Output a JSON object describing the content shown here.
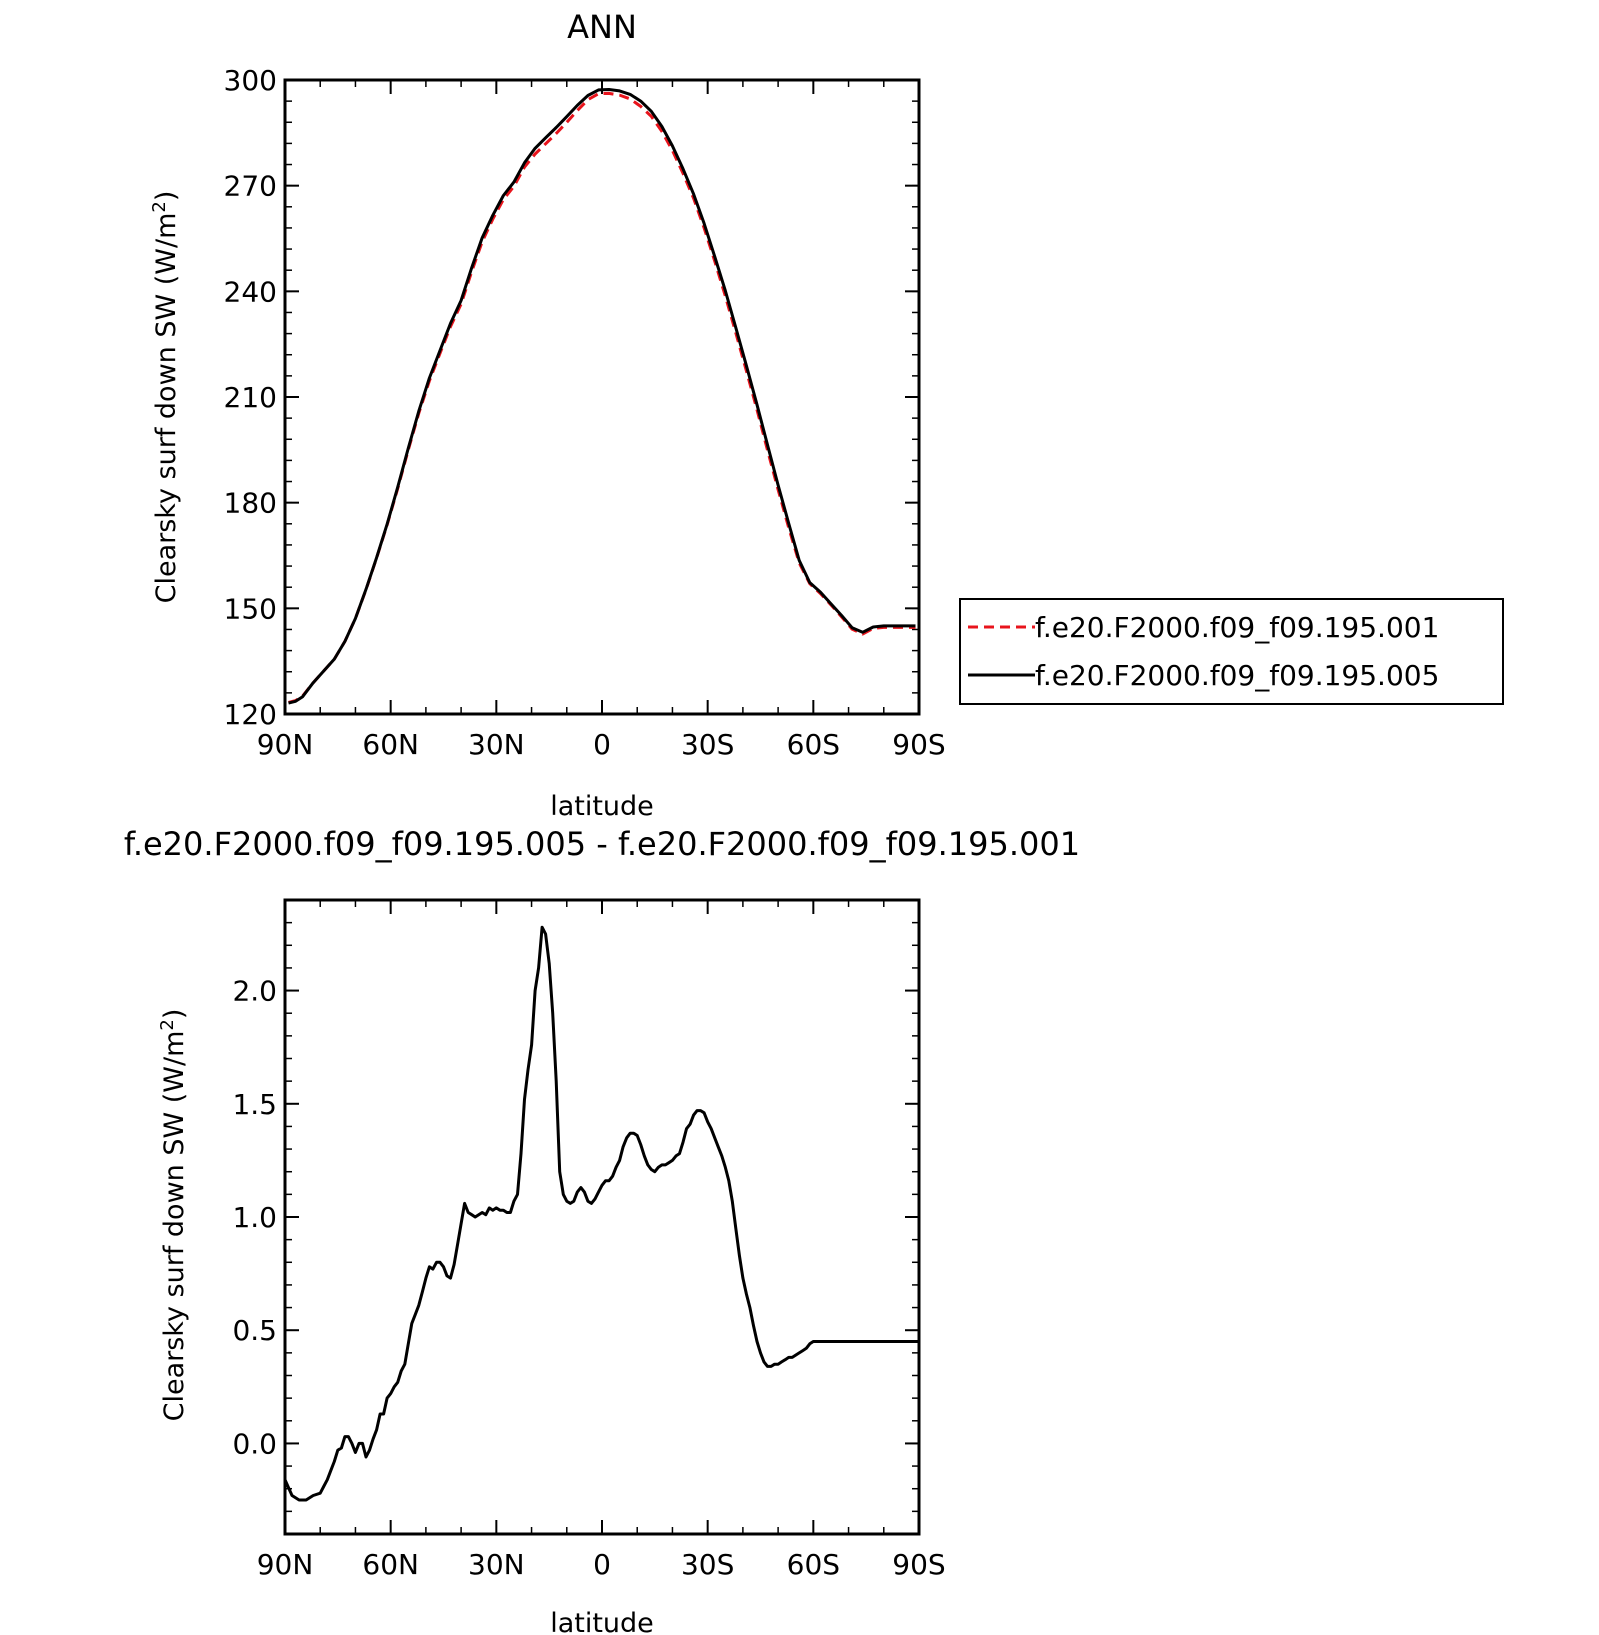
{
  "chart_data": [
    {
      "type": "line",
      "title": "ANN",
      "xlabel": "latitude",
      "ylabel": "Clearsky surf down SW (W/m²)",
      "ylabel_main": "Clearsky surf down SW (W/m",
      "ylabel_sup": "2",
      "ylabel_tail": ")",
      "xlim": [
        90,
        -90
      ],
      "ylim": [
        120,
        300
      ],
      "x_tick_values": [
        90,
        60,
        30,
        0,
        -30,
        -60,
        -90
      ],
      "x_tick_labels": [
        "90N",
        "60N",
        "30N",
        "0",
        "30S",
        "60S",
        "90S"
      ],
      "y_tick_values": [
        120,
        150,
        180,
        210,
        240,
        270,
        300
      ],
      "y_tick_labels": [
        "120",
        "150",
        "180",
        "210",
        "240",
        "270",
        "300"
      ],
      "legend_position": "right",
      "x": [
        89,
        87,
        85,
        82,
        79,
        76,
        73,
        70,
        67,
        64,
        61,
        58,
        55,
        52,
        49,
        46,
        43,
        40,
        37,
        34,
        31,
        28,
        25,
        22,
        19,
        16,
        13,
        10,
        7,
        4,
        1,
        -2,
        -5,
        -8,
        -11,
        -14,
        -17,
        -20,
        -23,
        -26,
        -29,
        -32,
        -35,
        -38,
        -41,
        -44,
        -47,
        -50,
        -53,
        -56,
        -59,
        -62,
        -65,
        -68,
        -71,
        -74,
        -77,
        -80,
        -83,
        -86,
        -89
      ],
      "series": [
        {
          "name": "f.e20.F2000.f09_f09.195.001",
          "color": "#e8141c",
          "dash": "dashed",
          "values": [
            123.3,
            123.8,
            125.1,
            128.9,
            132.2,
            135.6,
            140.6,
            147.1,
            155.3,
            164.3,
            173.7,
            184.0,
            195.0,
            205.4,
            214.6,
            222.4,
            230.0,
            236.4,
            245.6,
            254.1,
            260.5,
            266.1,
            269.8,
            275.3,
            279.0,
            281.9,
            284.8,
            288.0,
            291.3,
            294.4,
            296.1,
            296.2,
            295.7,
            294.6,
            292.5,
            289.7,
            285.4,
            280.0,
            273.5,
            266.4,
            258.0,
            248.6,
            238.7,
            228.2,
            217.4,
            206.4,
            194.9,
            183.7,
            172.9,
            162.9,
            157.0,
            154.2,
            151.0,
            147.6,
            144.1,
            142.7,
            144.3,
            144.6,
            144.6,
            144.6,
            144.6
          ]
        },
        {
          "name": "f.e20.F2000.f09_f09.195.005",
          "color": "#000000",
          "dash": "solid",
          "values": [
            123.1,
            123.6,
            124.9,
            128.9,
            132.2,
            135.6,
            140.6,
            147.1,
            155.4,
            164.4,
            173.9,
            184.4,
            195.5,
            206.0,
            215.4,
            223.2,
            230.9,
            237.4,
            246.7,
            255.2,
            261.6,
            267.2,
            271.0,
            276.5,
            280.6,
            283.6,
            286.5,
            289.6,
            292.8,
            295.6,
            297.2,
            297.3,
            296.9,
            295.9,
            294.0,
            291.1,
            286.8,
            281.3,
            274.8,
            267.6,
            259.3,
            249.9,
            240.2,
            229.7,
            218.9,
            207.8,
            196.4,
            185.0,
            174.1,
            163.6,
            157.3,
            154.6,
            151.3,
            148.0,
            144.5,
            143.2,
            144.7,
            145.0,
            145.0,
            145.0,
            145.0
          ]
        }
      ]
    },
    {
      "type": "line",
      "title": "f.e20.F2000.f09_f09.195.005 - f.e20.F2000.f09_f09.195.001",
      "xlabel": "latitude",
      "ylabel": "Clearsky surf down SW (W/m²)",
      "ylabel_main": "Clearsky surf down SW (W/m",
      "ylabel_sup": "2",
      "ylabel_tail": ")",
      "xlim": [
        90,
        -90
      ],
      "ylim": [
        -0.4,
        2.4
      ],
      "x_tick_values": [
        90,
        60,
        30,
        0,
        -30,
        -60,
        -90
      ],
      "x_tick_labels": [
        "90N",
        "60N",
        "30N",
        "0",
        "30S",
        "60S",
        "90S"
      ],
      "y_tick_values": [
        0.0,
        0.5,
        1.0,
        1.5,
        2.0
      ],
      "y_tick_labels": [
        "0.0",
        "0.5",
        "1.0",
        "1.5",
        "2.0"
      ],
      "x": [
        90,
        88,
        86,
        84,
        82,
        80,
        79,
        78,
        77,
        76,
        75,
        74,
        73,
        72,
        71,
        70,
        69,
        68,
        67,
        66,
        65,
        64,
        63,
        62,
        61,
        60,
        59,
        58,
        57,
        56,
        55,
        54,
        53,
        52,
        51,
        50,
        49,
        48,
        47,
        46,
        45,
        44,
        43,
        42,
        41,
        40,
        39,
        38,
        37,
        36,
        35,
        34,
        33,
        32,
        31,
        30,
        29,
        28,
        27,
        26,
        25,
        24,
        23,
        22,
        21,
        20,
        19,
        18,
        17,
        16,
        15,
        14,
        13,
        12,
        11,
        10,
        9,
        8,
        7,
        6,
        5,
        4,
        3,
        2,
        1,
        0,
        -1,
        -2,
        -3,
        -4,
        -5,
        -6,
        -7,
        -8,
        -9,
        -10,
        -11,
        -12,
        -13,
        -14,
        -15,
        -16,
        -17,
        -18,
        -19,
        -20,
        -21,
        -22,
        -23,
        -24,
        -25,
        -26,
        -27,
        -28,
        -29,
        -30,
        -31,
        -32,
        -33,
        -34,
        -35,
        -36,
        -37,
        -38,
        -39,
        -40,
        -41,
        -42,
        -43,
        -44,
        -45,
        -46,
        -47,
        -48,
        -49,
        -50,
        -51,
        -52,
        -53,
        -54,
        -55,
        -56,
        -57,
        -58,
        -59,
        -60,
        -61,
        -62,
        -63,
        -64,
        -65,
        -66,
        -67,
        -68,
        -69,
        -70,
        -71,
        -72,
        -73,
        -74,
        -75,
        -76,
        -77,
        -78,
        -79,
        -80,
        -81,
        -82,
        -83,
        -84,
        -85,
        -86,
        -87,
        -88,
        -89,
        -90
      ],
      "series": [
        {
          "name": "",
          "color": "#000000",
          "dash": "solid",
          "values": [
            -0.16,
            -0.23,
            -0.25,
            -0.25,
            -0.23,
            -0.22,
            -0.19,
            -0.16,
            -0.12,
            -0.08,
            -0.03,
            -0.02,
            0.03,
            0.03,
            0.0,
            -0.04,
            0.0,
            0.0,
            -0.06,
            -0.03,
            0.02,
            0.06,
            0.13,
            0.13,
            0.2,
            0.22,
            0.25,
            0.27,
            0.32,
            0.35,
            0.44,
            0.53,
            0.57,
            0.61,
            0.67,
            0.73,
            0.78,
            0.77,
            0.8,
            0.8,
            0.78,
            0.74,
            0.73,
            0.79,
            0.88,
            0.97,
            1.06,
            1.02,
            1.01,
            1.0,
            1.01,
            1.02,
            1.01,
            1.04,
            1.03,
            1.04,
            1.03,
            1.03,
            1.02,
            1.02,
            1.07,
            1.1,
            1.28,
            1.52,
            1.65,
            1.76,
            2.0,
            2.1,
            2.28,
            2.25,
            2.12,
            1.9,
            1.6,
            1.2,
            1.1,
            1.07,
            1.06,
            1.07,
            1.11,
            1.13,
            1.11,
            1.07,
            1.06,
            1.08,
            1.11,
            1.14,
            1.16,
            1.16,
            1.18,
            1.22,
            1.25,
            1.31,
            1.35,
            1.37,
            1.37,
            1.36,
            1.32,
            1.27,
            1.23,
            1.21,
            1.2,
            1.22,
            1.23,
            1.23,
            1.24,
            1.25,
            1.27,
            1.28,
            1.33,
            1.39,
            1.41,
            1.45,
            1.47,
            1.47,
            1.46,
            1.42,
            1.39,
            1.35,
            1.31,
            1.27,
            1.22,
            1.16,
            1.07,
            0.95,
            0.83,
            0.73,
            0.66,
            0.6,
            0.52,
            0.45,
            0.4,
            0.36,
            0.34,
            0.34,
            0.35,
            0.35,
            0.36,
            0.37,
            0.38,
            0.38,
            0.39,
            0.4,
            0.41,
            0.42,
            0.44,
            0.45,
            0.45,
            0.45,
            0.45,
            0.45,
            0.45,
            0.45,
            0.45,
            0.45,
            0.45,
            0.45,
            0.45,
            0.45,
            0.45,
            0.45,
            0.45,
            0.45,
            0.45,
            0.45,
            0.45,
            0.45,
            0.45,
            0.45,
            0.45,
            0.45,
            0.45,
            0.45,
            0.45,
            0.45,
            0.45,
            0.45
          ]
        }
      ]
    }
  ]
}
